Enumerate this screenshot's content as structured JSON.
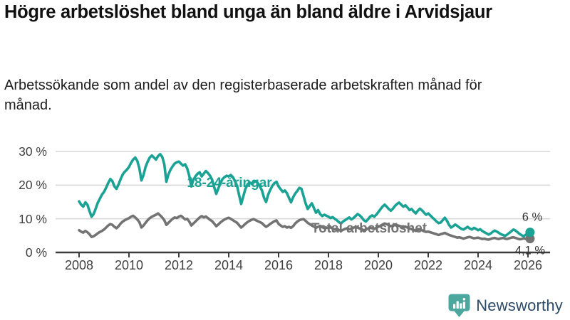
{
  "chart_data": {
    "type": "line",
    "title": "Högre arbetslöshet bland unga än bland äldre i Arvidsjaur",
    "subtitle": "Arbetssökande som andel av den registerbaserade arbetskraften månad för månad.",
    "x_unit": "month",
    "x_start": "2008-01",
    "x_end": "2026-02",
    "grid": true,
    "ylim": [
      0,
      31.5
    ],
    "xticks": [
      "2008",
      "2010",
      "2012",
      "2014",
      "2016",
      "2018",
      "2020",
      "2022",
      "2024",
      "2026"
    ],
    "yticks": [
      {
        "value": 0,
        "label": "0 %"
      },
      {
        "value": 10,
        "label": "10 %"
      },
      {
        "value": 20,
        "label": "20 %"
      },
      {
        "value": 30,
        "label": "30 %"
      }
    ],
    "series": [
      {
        "name": "Total arbetslöshet",
        "color": "#737373",
        "final_label": "4,1 %",
        "final_value": 4.1,
        "values": [
          6.6,
          6.2,
          5.9,
          6.4,
          6,
          5.4,
          4.6,
          4.8,
          5.2,
          5.7,
          6.1,
          6.4,
          6.8,
          7.4,
          8,
          8.4,
          8.2,
          7.6,
          7.2,
          7.8,
          8.6,
          9.2,
          9.6,
          9.9,
          10.2,
          10.6,
          10.9,
          10.4,
          9.8,
          9,
          7.4,
          8,
          8.8,
          9.6,
          10.2,
          10.6,
          10.9,
          11.2,
          11.6,
          11,
          10.4,
          9.6,
          8.2,
          8.8,
          9.4,
          10,
          10.4,
          10.2,
          10.6,
          10.9,
          10.4,
          9.8,
          10,
          9.2,
          8,
          8.6,
          9.2,
          9.8,
          10.4,
          10.8,
          10.4,
          10.7,
          10.2,
          9.7,
          9.3,
          8.6,
          7.8,
          8.3,
          8.9,
          9.4,
          9.8,
          10.1,
          10.3,
          10,
          9.6,
          9.2,
          8.8,
          8.1,
          7.4,
          7.9,
          8.5,
          9,
          9.4,
          9.7,
          9.9,
          9.6,
          9.3,
          9,
          8.7,
          8.1,
          7.6,
          8,
          8.5,
          8.9,
          9.3,
          9.5,
          8.5,
          8,
          7.6,
          7.8,
          7.4,
          7.6,
          7.3,
          7.8,
          8.6,
          9.2,
          9.6,
          9.8,
          9.9,
          9.4,
          8.8,
          8.4,
          8,
          7.7,
          7.3,
          7.6,
          7.9,
          7.5,
          7.2,
          7.4,
          7.2,
          7.5,
          7.1,
          6.8,
          7,
          6.7,
          6.4,
          6.7,
          7,
          7.2,
          6.9,
          7.1,
          7.3,
          7.6,
          7.4,
          7.1,
          6.9,
          6.6,
          6.8,
          7.1,
          7.4,
          7.2,
          7,
          7.3,
          7.6,
          7.9,
          8.3,
          8.6,
          8.4,
          8.1,
          7.8,
          8,
          8.3,
          8.1,
          7.9,
          7.7,
          7.5,
          7.7,
          7.4,
          7.1,
          6.9,
          6.7,
          6.4,
          6.6,
          6.9,
          6.6,
          6.3,
          6.1,
          6.2,
          6,
          5.8,
          5.6,
          5.4,
          5.2,
          5.4,
          5.6,
          5.8,
          5.5,
          5.2,
          5,
          4.8,
          4.6,
          4.4,
          4.5,
          4.3,
          4.1,
          4.3,
          4.5,
          4.6,
          4.4,
          4.2,
          4.3,
          4.4,
          4.2,
          4,
          4.1,
          3.9,
          3.8,
          4,
          4.2,
          4.3,
          4.1,
          4,
          4.2,
          4.3,
          4.1,
          4,
          4.2,
          4.4,
          4.5,
          4.3,
          4.1,
          3.9,
          4,
          4.2,
          4,
          4,
          4.1
        ]
      },
      {
        "name": "18-24-åringar",
        "color": "#1AA294",
        "final_label": "6 %",
        "final_value": 6.0,
        "values": [
          15.2,
          14.2,
          13.6,
          14.9,
          14.2,
          12.3,
          10.6,
          11.4,
          13,
          14.8,
          16,
          17.2,
          18,
          19.2,
          20.6,
          21.8,
          21.2,
          19.6,
          18.9,
          20.2,
          21.8,
          23.2,
          24,
          24.6,
          25.4,
          26.6,
          27.6,
          28.2,
          27.2,
          25,
          21.4,
          23,
          25.4,
          27,
          28.2,
          28.8,
          28.2,
          27.6,
          28.6,
          29.2,
          28.4,
          26.2,
          21,
          23.2,
          24.6,
          25.6,
          26.4,
          26.8,
          27,
          26.4,
          25.8,
          26.2,
          25,
          22.8,
          19.6,
          21.6,
          22.6,
          23.4,
          23.8,
          22.6,
          23.4,
          24.2,
          23.6,
          22.8,
          21.6,
          19.4,
          17.4,
          19,
          20.6,
          21.8,
          22.4,
          22.8,
          22.6,
          23,
          22.4,
          21.2,
          19.8,
          17,
          14.4,
          16.6,
          18.8,
          20.2,
          20.8,
          20.4,
          20.8,
          21.2,
          20.6,
          19.6,
          18.4,
          16.2,
          15,
          17.2,
          18.6,
          19.8,
          20.6,
          21,
          19.6,
          18.8,
          18,
          18.4,
          17.6,
          16.2,
          14.9,
          16.4,
          17.5,
          18.3,
          19.2,
          18.9,
          16.8,
          14.6,
          12.9,
          13.8,
          14.6,
          13.2,
          11.8,
          12.6,
          11.4,
          10.8,
          11.2,
          10.9,
          10.6,
          10.2,
          10.5,
          10,
          9.6,
          9,
          8.6,
          9.2,
          9.6,
          10,
          10.4,
          9.8,
          10.2,
          10.8,
          11.4,
          11,
          10.4,
          9.6,
          9.2,
          9.8,
          10.6,
          11,
          10.6,
          11.2,
          12,
          12.8,
          13.6,
          14.2,
          13.6,
          12.9,
          12.4,
          13,
          13.8,
          14.4,
          14.8,
          14.2,
          13.6,
          14,
          13.4,
          12.6,
          12.9,
          12.2,
          11.6,
          12.4,
          13,
          12.5,
          11.8,
          11.2,
          11.6,
          11,
          10.4,
          9.8,
          9.2,
          8.7,
          8.9,
          9.6,
          10.3,
          9.4,
          8.2,
          7.4,
          7.8,
          8.3,
          7.9,
          7.4,
          7,
          6.8,
          7.2,
          7.6,
          7.1,
          6.8,
          7.3,
          7,
          6.6,
          6.9,
          6.4,
          6,
          5.7,
          5.3,
          5.6,
          6.1,
          6.5,
          6.2,
          5.8,
          5.4,
          5.2,
          4.9,
          5.3,
          5.8,
          6.3,
          6.8,
          6.5,
          6,
          5.5,
          5.1,
          4.8,
          5.3,
          5.7,
          6
        ]
      }
    ]
  },
  "footer": {
    "brand": "Newsworthy",
    "logo_icon": "speech-bubble-bar-chart-exclamation",
    "logo_color": "#4CA79F",
    "text_color": "#2B4968"
  }
}
